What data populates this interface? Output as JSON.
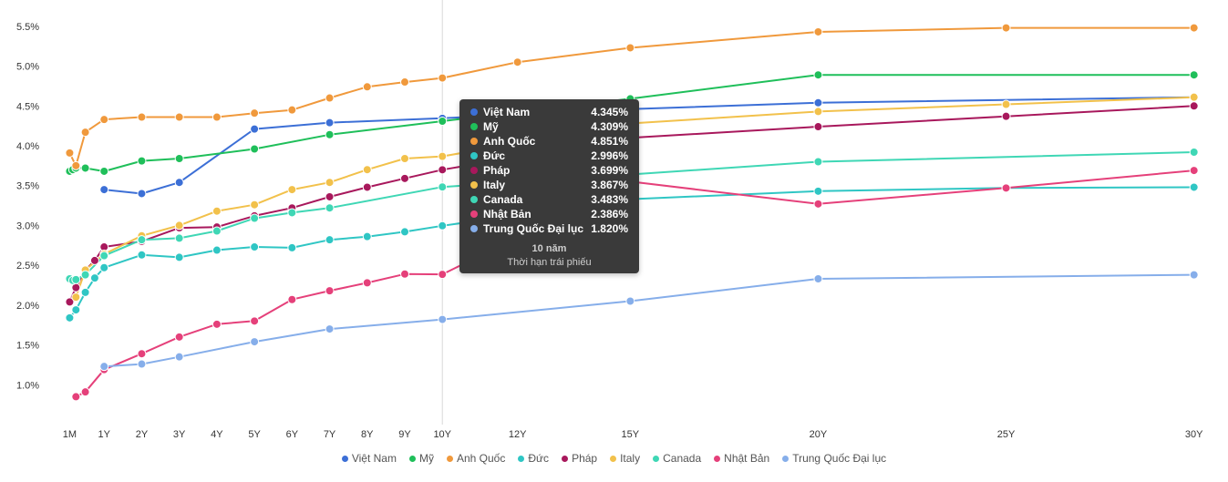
{
  "chart_data": {
    "type": "line",
    "y_ticks": [
      "5.5%",
      "5.0%",
      "4.5%",
      "4.0%",
      "3.5%",
      "3.0%",
      "2.5%",
      "2.0%",
      "1.5%",
      "1.0%"
    ],
    "y_tick_values": [
      5.5,
      5.0,
      4.5,
      4.0,
      3.5,
      3.0,
      2.5,
      2.0,
      1.5,
      1.0
    ],
    "ylim": [
      0.5,
      5.75
    ],
    "x_ticks": [
      "1M",
      "1Y",
      "2Y",
      "3Y",
      "4Y",
      "5Y",
      "6Y",
      "7Y",
      "8Y",
      "9Y",
      "10Y",
      "12Y",
      "15Y",
      "20Y",
      "25Y",
      "30Y"
    ],
    "x_tick_values": [
      0.083,
      1,
      2,
      3,
      4,
      5,
      6,
      7,
      8,
      9,
      10,
      12,
      15,
      20,
      25,
      30
    ],
    "xlim": [
      0,
      30.25
    ],
    "grid": false,
    "crosshair_x": 10,
    "legend_position": "bottom",
    "series": [
      {
        "name": "Việt Nam",
        "color": "#3c6fd6",
        "x": [
          1,
          2,
          3,
          5,
          7,
          10,
          15,
          20,
          30
        ],
        "y": [
          3.45,
          3.4,
          3.54,
          4.21,
          4.29,
          4.345,
          4.46,
          4.54,
          4.61
        ]
      },
      {
        "name": "Mỹ",
        "color": "#1fbf5a",
        "x": [
          0.083,
          0.167,
          0.25,
          0.5,
          1,
          2,
          3,
          5,
          7,
          10,
          15,
          20,
          30
        ],
        "y": [
          3.68,
          3.7,
          3.72,
          3.72,
          3.68,
          3.81,
          3.84,
          3.96,
          4.14,
          4.309,
          4.59,
          4.89,
          4.89
        ]
      },
      {
        "name": "Anh Quốc",
        "color": "#f0993c",
        "x": [
          0.083,
          0.25,
          0.5,
          1,
          2,
          3,
          4,
          5,
          6,
          7,
          8,
          9,
          10,
          12,
          15,
          20,
          25,
          30
        ],
        "y": [
          3.91,
          3.75,
          4.17,
          4.33,
          4.36,
          4.36,
          4.36,
          4.41,
          4.45,
          4.6,
          4.74,
          4.8,
          4.851,
          5.05,
          5.23,
          5.43,
          5.48,
          5.48
        ]
      },
      {
        "name": "Đức",
        "color": "#2fc6c4",
        "x": [
          0.083,
          0.25,
          0.5,
          0.75,
          1,
          2,
          3,
          4,
          5,
          6,
          7,
          8,
          9,
          10,
          15,
          20,
          25,
          30
        ],
        "y": [
          1.84,
          1.94,
          2.16,
          2.34,
          2.47,
          2.63,
          2.6,
          2.69,
          2.73,
          2.72,
          2.82,
          2.86,
          2.92,
          2.996,
          3.33,
          3.43,
          3.47,
          3.48
        ]
      },
      {
        "name": "Pháp",
        "color": "#a8185c",
        "x": [
          0.083,
          0.25,
          0.5,
          0.75,
          1,
          2,
          3,
          4,
          5,
          6,
          7,
          8,
          9,
          10,
          15,
          20,
          25,
          30
        ],
        "y": [
          2.04,
          2.22,
          2.44,
          2.56,
          2.73,
          2.8,
          2.97,
          2.98,
          3.12,
          3.22,
          3.36,
          3.48,
          3.59,
          3.699,
          4.1,
          4.24,
          4.37,
          4.5
        ]
      },
      {
        "name": "Italy",
        "color": "#f2c14b",
        "x": [
          0.25,
          0.5,
          1,
          2,
          3,
          4,
          5,
          6,
          7,
          8,
          9,
          10,
          15,
          20,
          25,
          30
        ],
        "y": [
          2.1,
          2.44,
          2.64,
          2.87,
          3.0,
          3.18,
          3.26,
          3.45,
          3.54,
          3.7,
          3.84,
          3.867,
          4.28,
          4.43,
          4.52,
          4.61
        ]
      },
      {
        "name": "Canada",
        "color": "#3fd7b5",
        "x": [
          0.083,
          0.167,
          0.25,
          0.5,
          1,
          2,
          3,
          4,
          5,
          6,
          7,
          10,
          15,
          20,
          30
        ],
        "y": [
          2.33,
          2.31,
          2.32,
          2.38,
          2.62,
          2.82,
          2.84,
          2.93,
          3.09,
          3.16,
          3.22,
          3.483,
          3.64,
          3.8,
          3.92
        ]
      },
      {
        "name": "Nhật Bản",
        "color": "#e5407a",
        "x": [
          0.25,
          0.5,
          1,
          2,
          3,
          4,
          5,
          6,
          7,
          8,
          9,
          10,
          15,
          20,
          25,
          30
        ],
        "y": [
          0.85,
          0.91,
          1.19,
          1.39,
          1.6,
          1.76,
          1.8,
          2.07,
          2.18,
          2.28,
          2.39,
          2.386,
          3.55,
          3.27,
          3.47,
          3.69
        ]
      },
      {
        "name": "Trung Quốc Đại lục",
        "color": "#86aeea",
        "x": [
          1,
          2,
          3,
          5,
          7,
          10,
          15,
          20,
          30
        ],
        "y": [
          1.23,
          1.26,
          1.35,
          1.54,
          1.7,
          1.82,
          2.05,
          2.33,
          2.38
        ]
      }
    ],
    "tooltip": {
      "rows": [
        {
          "name": "Việt Nam",
          "value": "4.345%",
          "color": "#3c6fd6"
        },
        {
          "name": "Mỹ",
          "value": "4.309%",
          "color": "#1fbf5a"
        },
        {
          "name": "Anh Quốc",
          "value": "4.851%",
          "color": "#f0993c"
        },
        {
          "name": "Đức",
          "value": "2.996%",
          "color": "#2fc6c4"
        },
        {
          "name": "Pháp",
          "value": "3.699%",
          "color": "#a8185c"
        },
        {
          "name": "Italy",
          "value": "3.867%",
          "color": "#f2c14b"
        },
        {
          "name": "Canada",
          "value": "3.483%",
          "color": "#3fd7b5"
        },
        {
          "name": "Nhật Bản",
          "value": "2.386%",
          "color": "#e5407a"
        },
        {
          "name": "Trung Quốc Đại lục",
          "value": "1.820%",
          "color": "#86aeea"
        }
      ],
      "title": "10 năm",
      "subtitle": "Thời hạn trái phiếu"
    }
  }
}
